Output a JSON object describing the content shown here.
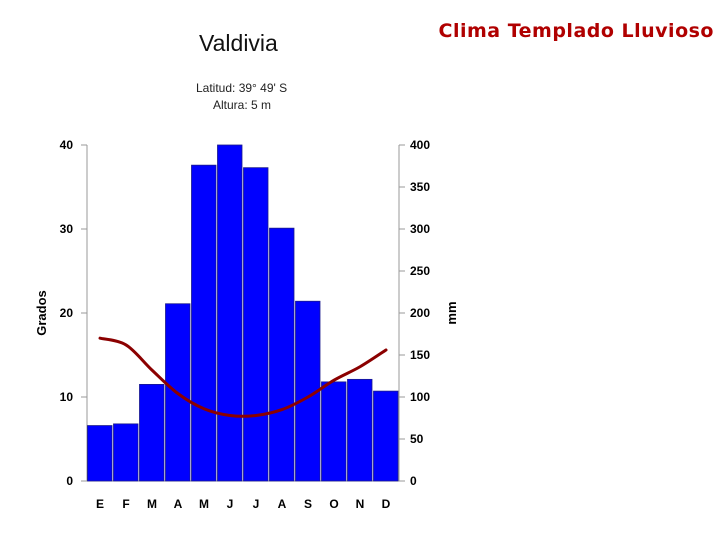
{
  "header": {
    "banner": "Clima Templado Lluvioso"
  },
  "chart_data": {
    "type": "bar",
    "title": "Valdivia",
    "subtitle_lines": [
      "Latitud: 39° 49' S",
      "Altura: 5 m"
    ],
    "categories": [
      "E",
      "F",
      "M",
      "A",
      "M",
      "J",
      "J",
      "A",
      "S",
      "O",
      "N",
      "D"
    ],
    "series": [
      {
        "kind": "bar",
        "axis": "right",
        "values": [
          66,
          68,
          115,
          211,
          376,
          400,
          373,
          301,
          214,
          118,
          121,
          107
        ],
        "color": "#0000ff"
      },
      {
        "kind": "line",
        "axis": "left",
        "values": [
          17.0,
          16.2,
          13.2,
          10.4,
          8.6,
          7.8,
          7.8,
          8.5,
          10.0,
          12.0,
          13.6,
          15.6
        ],
        "color": "#8b0000"
      }
    ],
    "ylabel_left": "Grados",
    "ylabel_right": "mm",
    "ylim_left": [
      0,
      40
    ],
    "ylim_right": [
      0,
      400
    ],
    "yticks_left": [
      "0",
      "10",
      "20",
      "30",
      "40"
    ],
    "yticks_right": [
      "0",
      "50",
      "100",
      "150",
      "200",
      "250",
      "300",
      "350",
      "400"
    ],
    "grid": false,
    "legend": "none"
  }
}
